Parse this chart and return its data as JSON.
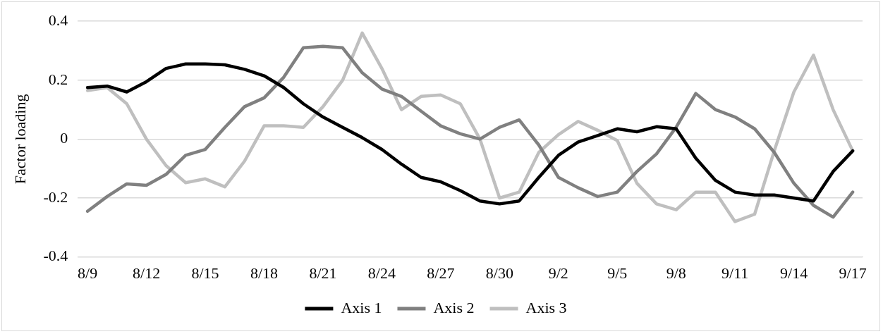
{
  "chart_data": {
    "type": "line",
    "ylabel": "Factor loading",
    "categories": [
      "8/9",
      null,
      null,
      "8/12",
      null,
      null,
      "8/15",
      null,
      null,
      "8/18",
      null,
      null,
      "8/21",
      null,
      null,
      "8/24",
      null,
      null,
      "8/27",
      null,
      null,
      "8/30",
      null,
      null,
      "9/2",
      null,
      null,
      "9/5",
      null,
      null,
      "9/8",
      null,
      null,
      "9/11",
      null,
      null,
      "9/14",
      null,
      null,
      "9/17"
    ],
    "series": [
      {
        "name": "Axis 1",
        "color": "#000000",
        "values": [
          0.175,
          0.18,
          0.16,
          0.195,
          0.24,
          0.255,
          0.255,
          0.252,
          0.237,
          0.215,
          0.175,
          0.12,
          0.075,
          0.04,
          0.005,
          -0.035,
          -0.085,
          -0.13,
          -0.145,
          -0.175,
          -0.21,
          -0.22,
          -0.21,
          -0.13,
          -0.055,
          -0.01,
          0.012,
          0.035,
          0.025,
          0.042,
          0.035,
          -0.065,
          -0.14,
          -0.18,
          -0.19,
          -0.19,
          -0.2,
          -0.21,
          -0.11,
          -0.04
        ]
      },
      {
        "name": "Axis 2",
        "color": "#808080",
        "values": [
          -0.245,
          -0.195,
          -0.152,
          -0.157,
          -0.12,
          -0.055,
          -0.035,
          0.04,
          0.11,
          0.14,
          0.21,
          0.31,
          0.315,
          0.31,
          0.225,
          0.17,
          0.145,
          0.095,
          0.045,
          0.018,
          0.0,
          0.04,
          0.065,
          -0.02,
          -0.13,
          -0.165,
          -0.195,
          -0.18,
          -0.11,
          -0.05,
          0.04,
          0.155,
          0.1,
          0.075,
          0.035,
          -0.045,
          -0.15,
          -0.225,
          -0.265,
          -0.18
        ]
      },
      {
        "name": "Axis 3",
        "color": "#bfbfbf",
        "values": [
          0.165,
          0.175,
          0.12,
          0.0,
          -0.09,
          -0.148,
          -0.135,
          -0.162,
          -0.075,
          0.045,
          0.045,
          0.04,
          0.11,
          0.2,
          0.36,
          0.24,
          0.1,
          0.145,
          0.15,
          0.12,
          0.0,
          -0.2,
          -0.18,
          -0.045,
          0.015,
          0.06,
          0.03,
          -0.005,
          -0.15,
          -0.22,
          -0.24,
          -0.18,
          -0.18,
          -0.28,
          -0.255,
          -0.04,
          0.16,
          0.285,
          0.1,
          -0.04
        ]
      }
    ],
    "ylim": [
      -0.4,
      0.4
    ],
    "yticks": [
      -0.4,
      -0.2,
      0,
      0.2,
      0.4
    ],
    "grid": "y",
    "legend": "bottom",
    "marker": "none",
    "line_style": "solid"
  }
}
